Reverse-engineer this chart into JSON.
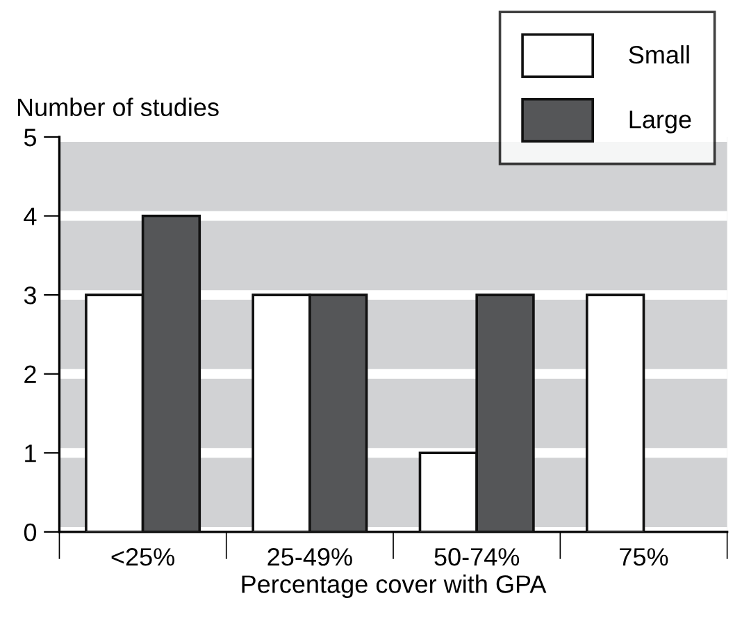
{
  "chart_data": {
    "type": "bar",
    "xlabel": "Percentage cover with GPA",
    "ylabel": "Number of studies",
    "categories": [
      "<25%",
      "25-49%",
      "50-74%",
      "75%"
    ],
    "series": [
      {
        "name": "Small",
        "color": "#ffffff",
        "values": [
          3,
          3,
          1,
          3
        ]
      },
      {
        "name": "Large",
        "color": "#555658",
        "values": [
          4,
          3,
          3,
          null
        ]
      }
    ],
    "ylim": [
      0,
      5
    ],
    "yticks": [
      0,
      1,
      2,
      3,
      4,
      5
    ],
    "grid": "y",
    "legend": "top right"
  }
}
